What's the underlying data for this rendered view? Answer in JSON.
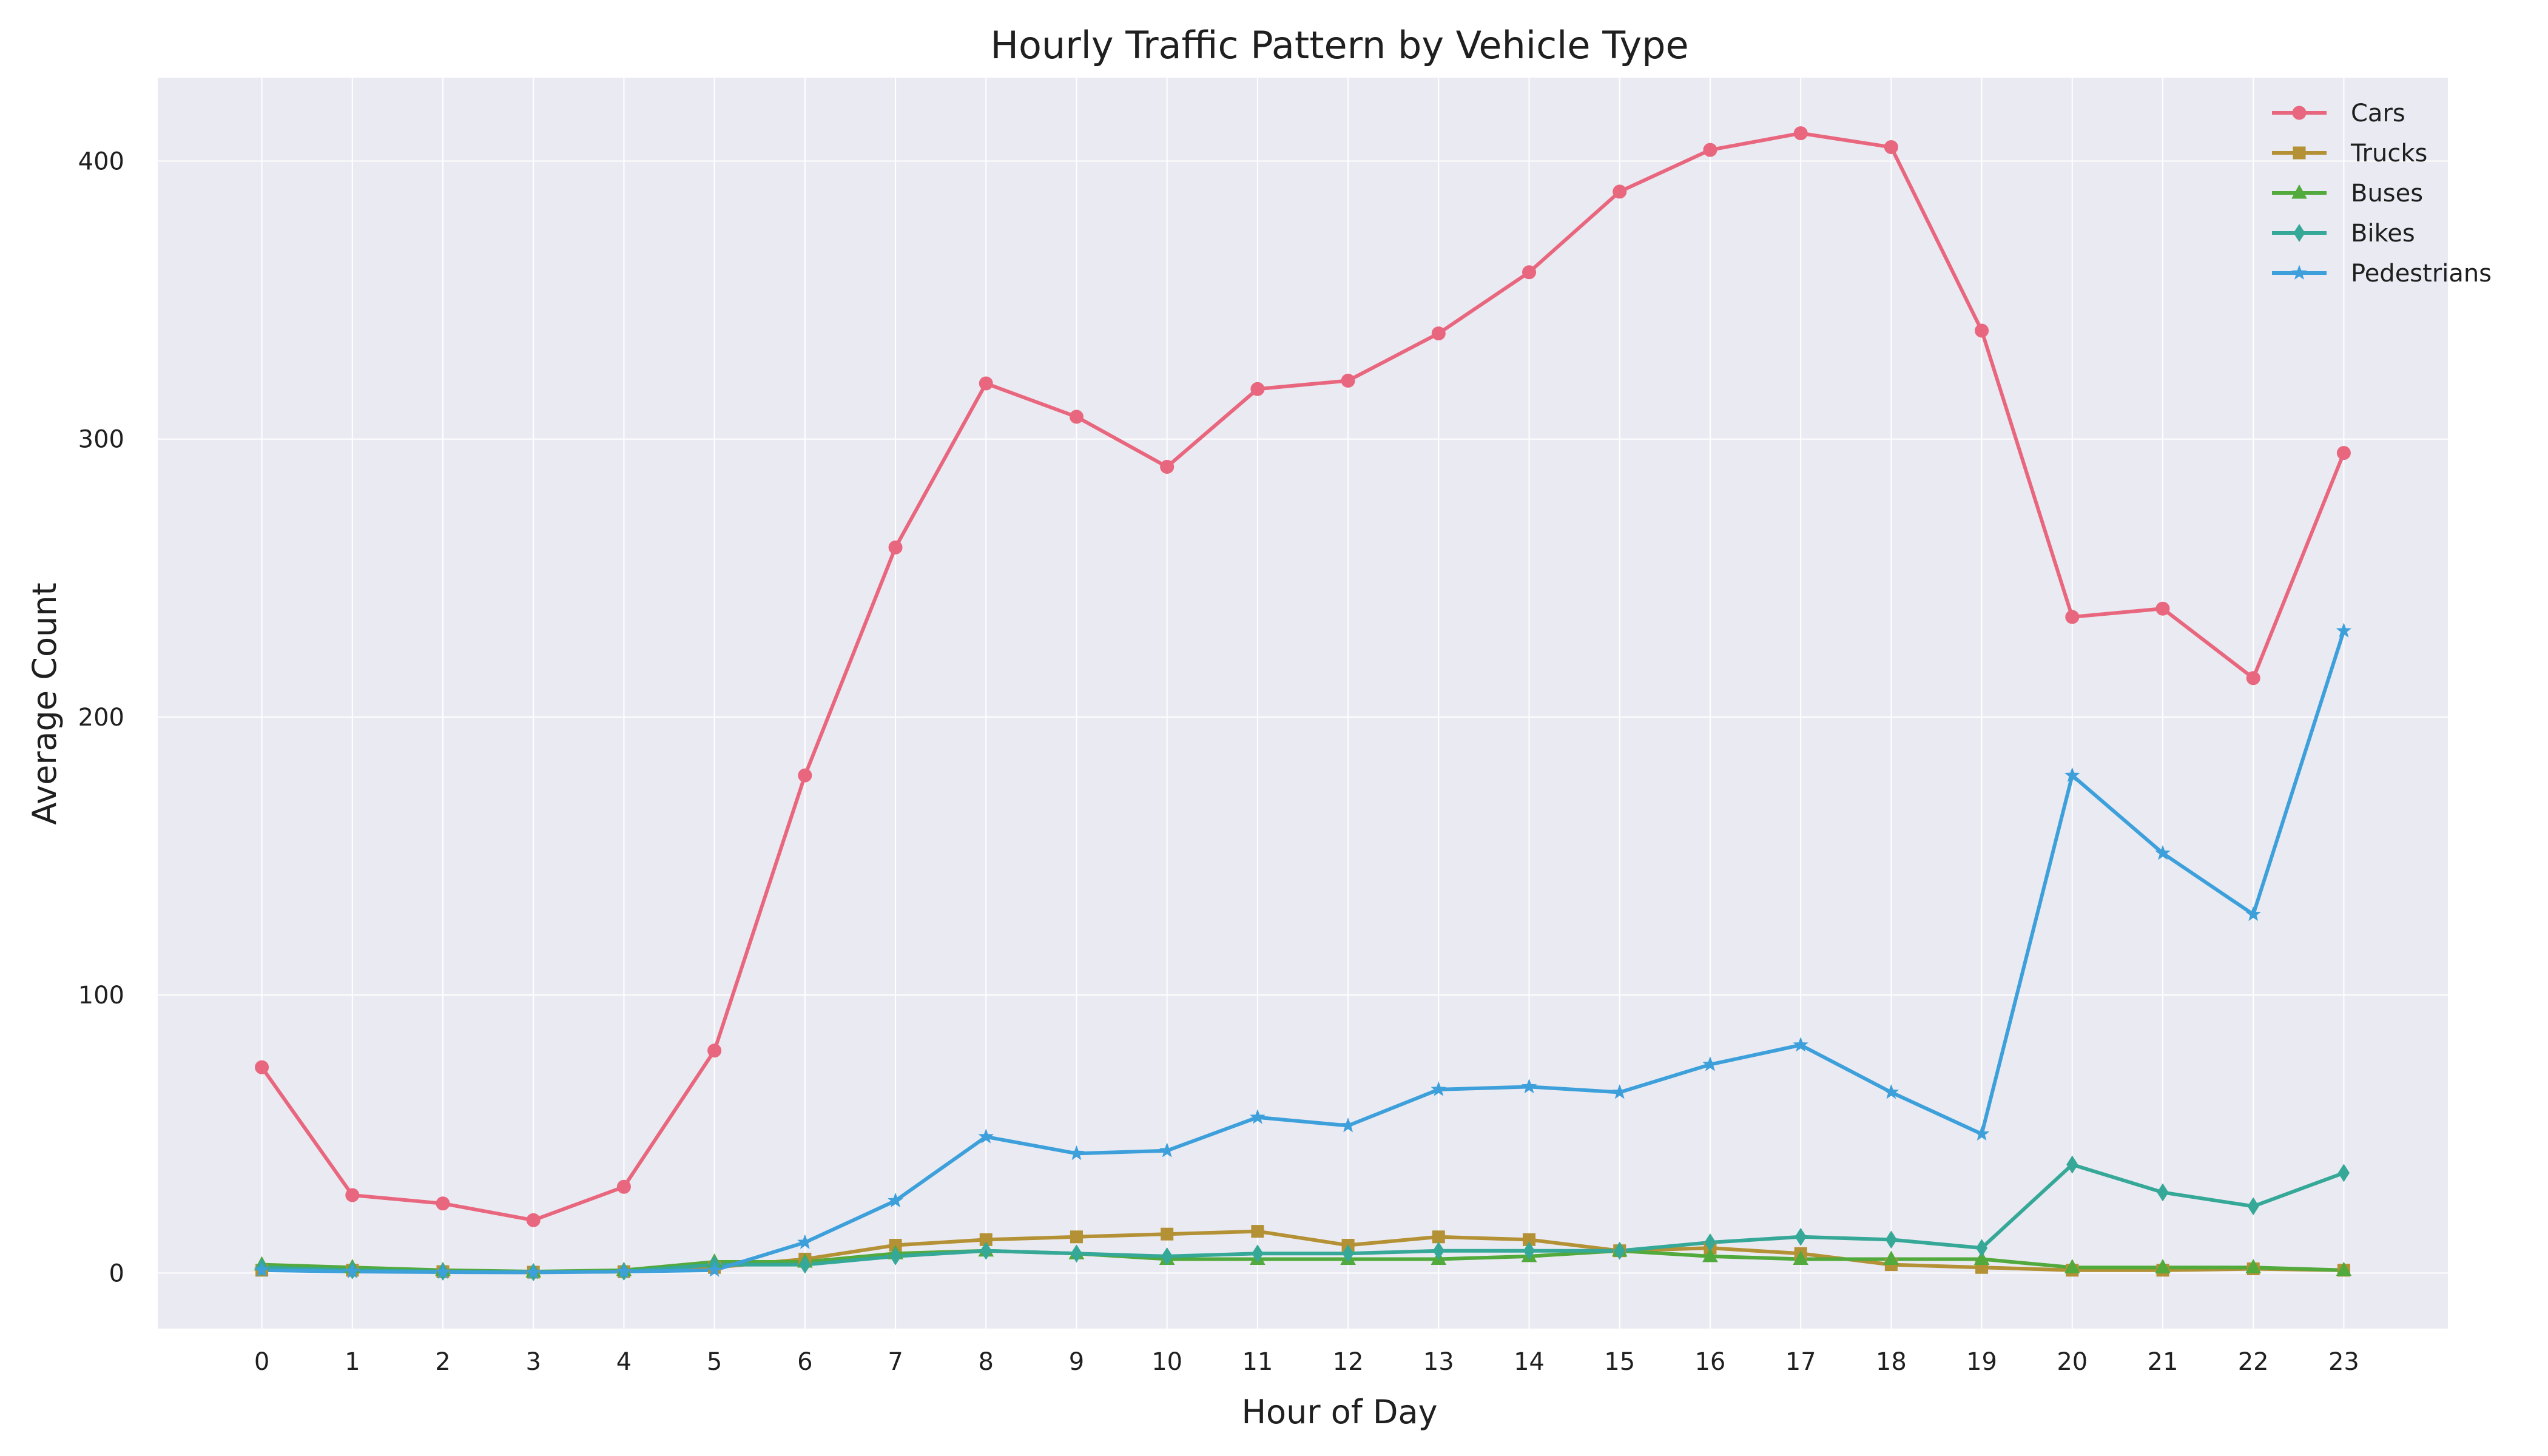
{
  "chart_data": {
    "type": "line",
    "title": "Hourly Traffic Pattern by Vehicle Type",
    "xlabel": "Hour of Day",
    "ylabel": "Average Count",
    "x": [
      0,
      1,
      2,
      3,
      4,
      5,
      6,
      7,
      8,
      9,
      10,
      11,
      12,
      13,
      14,
      15,
      16,
      17,
      18,
      19,
      20,
      21,
      22,
      23
    ],
    "xlim": [
      -1.15,
      24.15
    ],
    "ylim": [
      -20,
      430
    ],
    "yticks": [
      0,
      100,
      200,
      300,
      400
    ],
    "grid": true,
    "legend_position": "top-right",
    "series": [
      {
        "name": "Cars",
        "color": "#e8677e",
        "marker": "circle",
        "values": [
          74,
          28,
          25,
          19,
          31,
          80,
          179,
          261,
          320,
          308,
          290,
          318,
          321,
          338,
          360,
          389,
          404,
          410,
          405,
          339,
          236,
          239,
          214,
          295
        ]
      },
      {
        "name": "Trucks",
        "color": "#b39134",
        "marker": "square",
        "values": [
          1,
          1,
          0.5,
          0.3,
          0.5,
          2,
          5,
          10,
          12,
          13,
          14,
          15,
          10,
          13,
          12,
          8,
          9,
          7,
          3,
          2,
          1,
          1,
          1.5,
          1
        ]
      },
      {
        "name": "Buses",
        "color": "#52a93c",
        "marker": "triangle",
        "values": [
          3,
          2,
          1,
          0.5,
          1,
          4,
          4,
          7,
          8,
          7,
          5,
          5,
          5,
          5,
          6,
          8,
          6,
          5,
          5,
          5,
          2,
          2,
          2,
          1
        ]
      },
      {
        "name": "Bikes",
        "color": "#35a898",
        "marker": "diamond",
        "values": [
          2,
          1,
          0.5,
          0.3,
          0.5,
          3,
          3,
          6,
          8,
          7,
          6,
          7,
          7,
          8,
          8,
          8,
          11,
          13,
          12,
          9,
          39,
          29,
          24,
          36
        ]
      },
      {
        "name": "Pedestrians",
        "color": "#3da0db",
        "marker": "star",
        "values": [
          1,
          0.5,
          0.3,
          0.2,
          0.5,
          1,
          11,
          26,
          49,
          43,
          44,
          56,
          53,
          66,
          67,
          65,
          75,
          82,
          65,
          50,
          179,
          151,
          129,
          231
        ]
      }
    ]
  }
}
